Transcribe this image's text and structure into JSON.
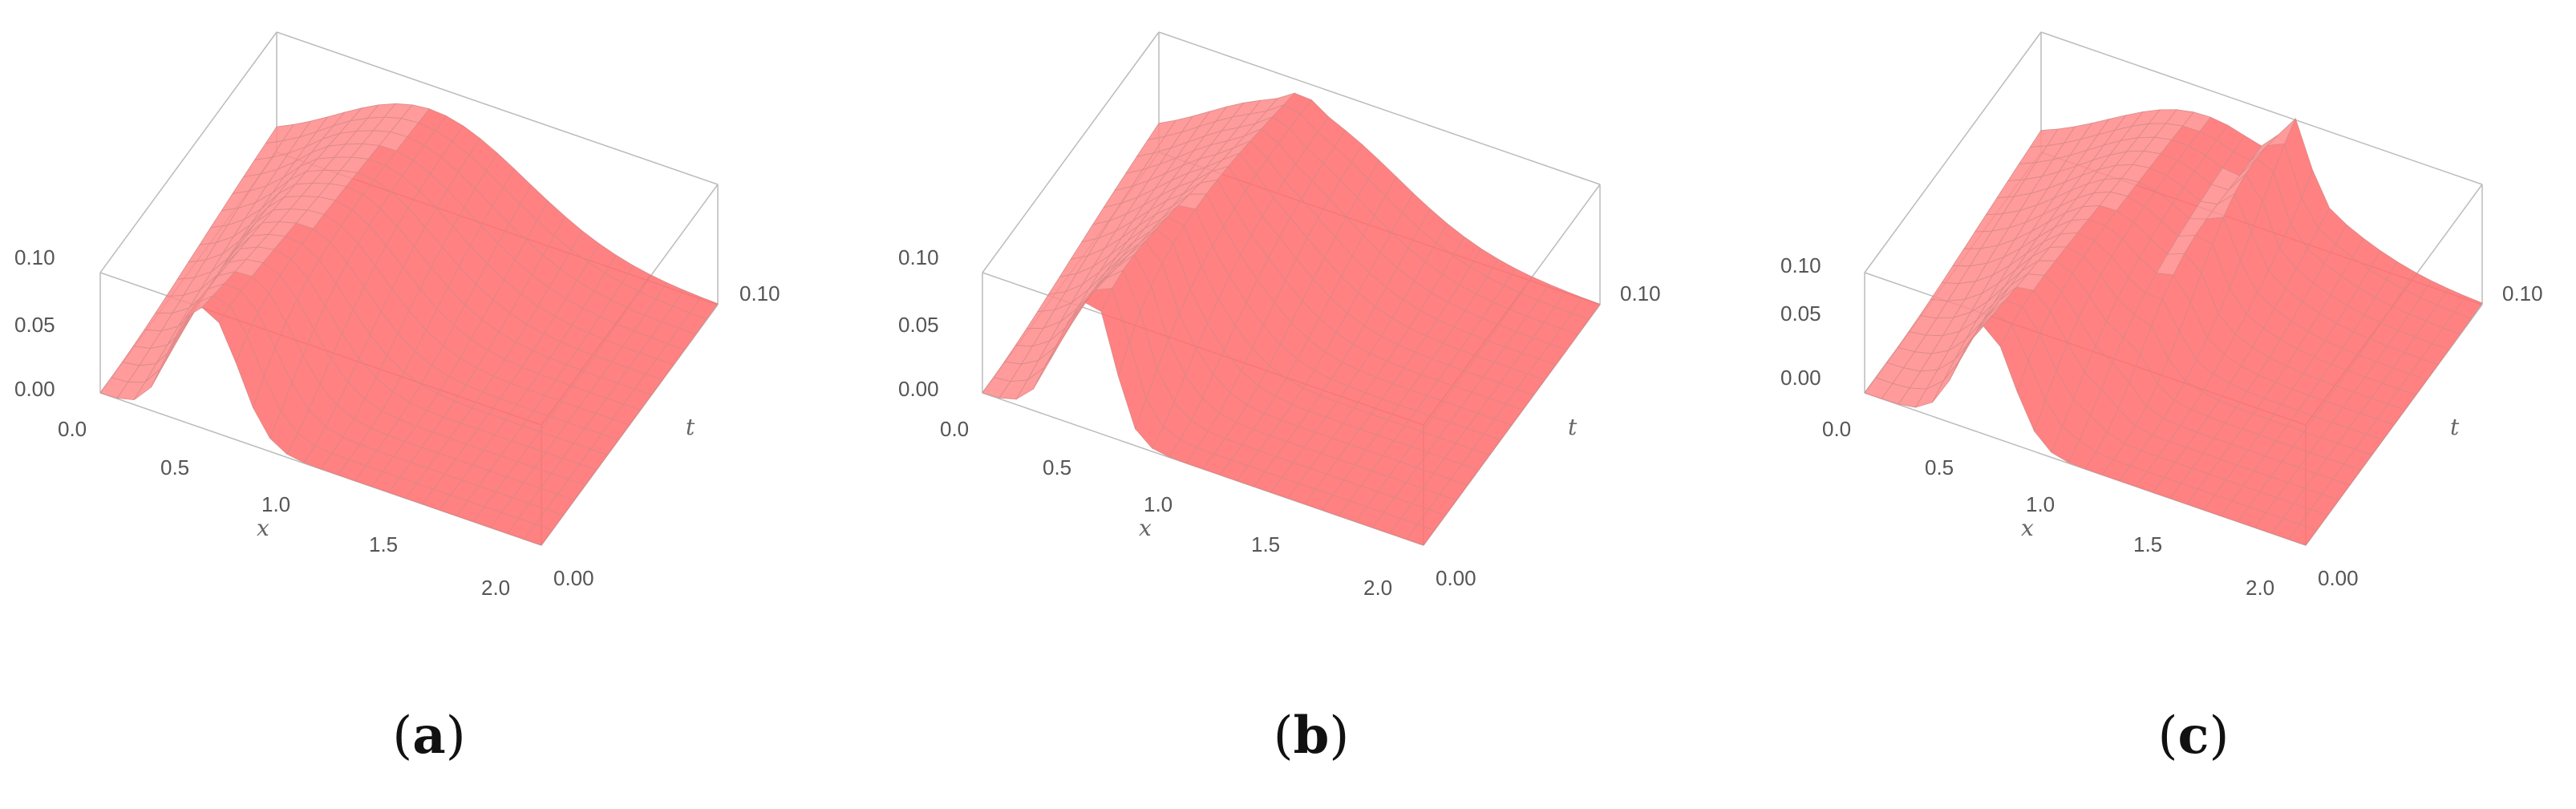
{
  "figure": {
    "panels": [
      {
        "caption": "a"
      },
      {
        "caption": "b"
      },
      {
        "caption": "c"
      }
    ]
  },
  "chart_data": [
    {
      "type": "surface3d",
      "label": "a",
      "xlabel": "x",
      "ylabel": "t",
      "zlabel": "",
      "xlim": [
        0,
        2
      ],
      "tlim": [
        0,
        0.1
      ],
      "zlim": [
        0,
        0.1
      ],
      "x_ticks": [
        "0.0",
        "0.5",
        "1.0",
        "1.5",
        "2.0"
      ],
      "t_ticks": [
        "0.00",
        "0.10"
      ],
      "z_ticks": [
        "0.00",
        "0.05",
        "0.10"
      ],
      "surface_color": "#ff6b6b",
      "box": true
    },
    {
      "type": "surface3d",
      "label": "b",
      "xlabel": "x",
      "ylabel": "t",
      "zlabel": "",
      "xlim": [
        0,
        2
      ],
      "tlim": [
        0,
        0.1
      ],
      "zlim": [
        0,
        0.1
      ],
      "x_ticks": [
        "0.0",
        "0.5",
        "1.0",
        "1.5",
        "2.0"
      ],
      "t_ticks": [
        "0.00",
        "0.10"
      ],
      "z_ticks": [
        "0.00",
        "0.05",
        "0.10"
      ],
      "surface_color": "#ff6b6b",
      "box": true
    },
    {
      "type": "surface3d",
      "label": "c",
      "xlabel": "x",
      "ylabel": "t",
      "zlabel": "",
      "xlim": [
        0,
        2
      ],
      "tlim": [
        0,
        0.1
      ],
      "zlim": [
        0,
        0.1
      ],
      "x_ticks": [
        "0.0",
        "0.5",
        "1.0",
        "1.5",
        "2.0"
      ],
      "t_ticks": [
        "0.00",
        "0.10"
      ],
      "z_ticks": [
        "0.00",
        "0.05",
        "0.10"
      ],
      "surface_color": "#ff6b6b",
      "box": true
    }
  ]
}
